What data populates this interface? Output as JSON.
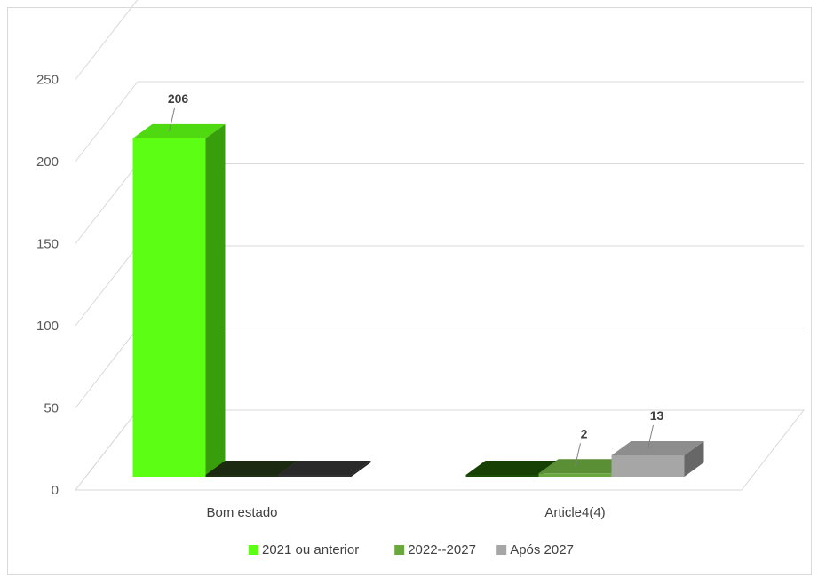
{
  "chart_data": {
    "type": "bar",
    "title": "",
    "xlabel": "",
    "ylabel": "",
    "categories": [
      "Bom estado",
      "Article4(4)"
    ],
    "series": [
      {
        "name": "2021 ou anterior",
        "values": [
          206,
          0
        ],
        "color": "#5cff14",
        "data_labels": [
          "206",
          ""
        ]
      },
      {
        "name": "2022--2027",
        "values": [
          0,
          2
        ],
        "color": "#6aa83e",
        "data_labels": [
          "",
          "2"
        ]
      },
      {
        "name": "Após 2027",
        "values": [
          0,
          13
        ],
        "color": "#a6a6a6",
        "data_labels": [
          "",
          "13"
        ]
      }
    ],
    "ylim": [
      0,
      250
    ],
    "yticks": [
      "0",
      "50",
      "100",
      "150",
      "200",
      "250"
    ],
    "grid": true,
    "three_d": true,
    "legend_position": "bottom"
  }
}
